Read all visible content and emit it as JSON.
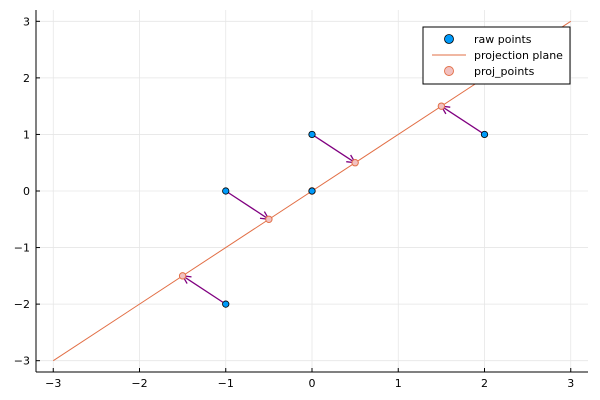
{
  "chart_data": {
    "type": "scatter",
    "title": "",
    "xlabel": "",
    "ylabel": "",
    "xlim": [
      -3.2,
      3.2
    ],
    "ylim": [
      -3.2,
      3.2
    ],
    "xticks": [
      -3,
      -2,
      -1,
      0,
      1,
      2,
      3
    ],
    "yticks": [
      -3,
      -2,
      -1,
      0,
      1,
      2,
      3
    ],
    "grid": true,
    "legend_position": "top-right",
    "series": [
      {
        "name": "raw points",
        "kind": "scatter",
        "color": "#009AFA",
        "points": [
          [
            -1,
            -2
          ],
          [
            -1,
            0
          ],
          [
            0,
            0
          ],
          [
            0,
            1
          ],
          [
            2,
            1
          ]
        ]
      },
      {
        "name": "projection plane",
        "kind": "line",
        "color": "#E26F46",
        "points": [
          [
            -3,
            -3
          ],
          [
            3,
            3
          ]
        ]
      },
      {
        "name": "proj_points",
        "kind": "scatter-hollow",
        "color": "#E26F46",
        "fill": "#F2C1C1",
        "points": [
          [
            -1.5,
            -1.5
          ],
          [
            -0.5,
            -0.5
          ],
          [
            0,
            0
          ],
          [
            0.5,
            0.5
          ],
          [
            1.5,
            1.5
          ]
        ]
      }
    ],
    "arrows": {
      "color": "#800080",
      "segments": [
        {
          "from": [
            -1,
            -2
          ],
          "to": [
            -1.5,
            -1.5
          ]
        },
        {
          "from": [
            -1,
            0
          ],
          "to": [
            -0.5,
            -0.5
          ]
        },
        {
          "from": [
            0,
            1
          ],
          "to": [
            0.5,
            0.5
          ]
        },
        {
          "from": [
            2,
            1
          ],
          "to": [
            1.5,
            1.5
          ]
        }
      ]
    }
  }
}
